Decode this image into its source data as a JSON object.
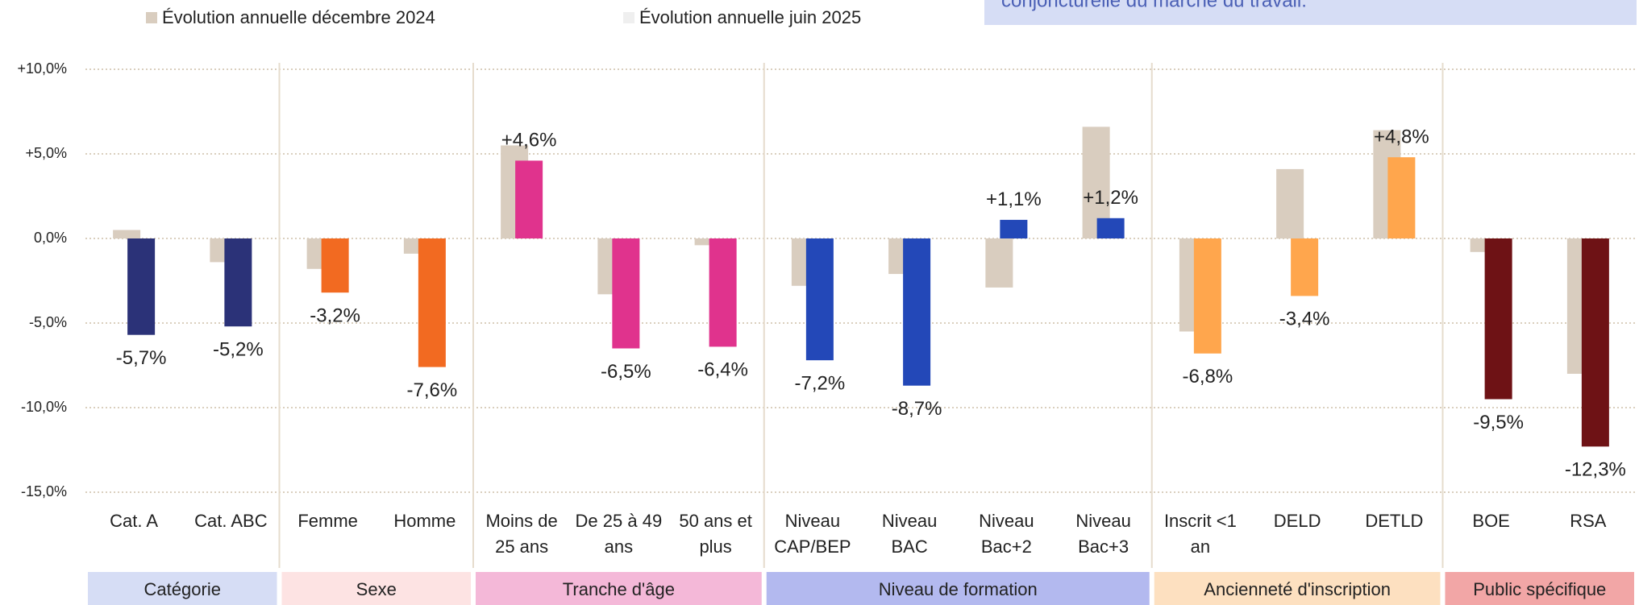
{
  "chart_data": {
    "type": "bar",
    "annotation": "conjoncturelle du marché du travail.",
    "groups": [
      {
        "label": "Catégorie",
        "color": "#d6ddf5",
        "bar_color": "#2b3278",
        "categories": [
          "Cat. A",
          "Cat. ABC"
        ]
      },
      {
        "label": "Sexe",
        "color": "#fde3e3",
        "bar_color": "#f26a21",
        "categories": [
          "Femme",
          "Homme"
        ]
      },
      {
        "label": "Tranche d'âge",
        "color": "#f4b8d8",
        "bar_color": "#e0338d",
        "categories": [
          "Moins de 25 ans",
          "De 25 à 49 ans",
          "50 ans et plus"
        ]
      },
      {
        "label": "Niveau de formation",
        "color": "#b3b9ef",
        "bar_color": "#2348b8",
        "categories": [
          "Niveau CAP/BEP",
          "Niveau BAC",
          "Niveau Bac+2",
          "Niveau Bac+3"
        ]
      },
      {
        "label": "Ancienneté d'inscription",
        "color": "#fde0c0",
        "bar_color": "#ffa64d",
        "categories": [
          "Inscrit <1 an",
          "DELD",
          "DETLD"
        ]
      },
      {
        "label": "Public spécifique",
        "color": "#f2a6a6",
        "bar_color": "#6e1215",
        "categories": [
          "BOE",
          "RSA"
        ]
      }
    ],
    "series": [
      {
        "name": "Évolution annuelle décembre 2024",
        "color": "#d9cdbf",
        "values": [
          0.5,
          -1.4,
          -1.8,
          -0.9,
          5.5,
          -3.3,
          -0.4,
          -2.8,
          -2.1,
          -2.9,
          6.6,
          -5.5,
          4.1,
          6.4,
          -0.8,
          -8.0
        ]
      },
      {
        "name": "Évolution annuelle juin 2025",
        "color": "#efefef",
        "values": [
          -5.7,
          -5.2,
          -3.2,
          -7.6,
          4.6,
          -6.5,
          -6.4,
          -7.2,
          -8.7,
          1.1,
          1.2,
          -6.8,
          -3.4,
          4.8,
          -9.5,
          -12.3
        ],
        "value_labels": [
          "-5,7%",
          "-5,2%",
          "-3,2%",
          "-7,6%",
          "+4,6%",
          "-6,5%",
          "-6,4%",
          "-7,2%",
          "-8,7%",
          "+1,1%",
          "+1,2%",
          "-6,8%",
          "-3,4%",
          "+4,8%",
          "-9,5%",
          "-12,3%"
        ]
      }
    ],
    "ylim": [
      -15,
      10
    ],
    "yticks": [
      {
        "value": 10,
        "label": "+10,0%"
      },
      {
        "value": 5,
        "label": "+5,0%"
      },
      {
        "value": 0,
        "label": "0,0%"
      },
      {
        "value": -5,
        "label": "-5,0%"
      },
      {
        "value": -10,
        "label": "-10,0%"
      },
      {
        "value": -15,
        "label": "-15,0%"
      }
    ],
    "grid": true
  }
}
